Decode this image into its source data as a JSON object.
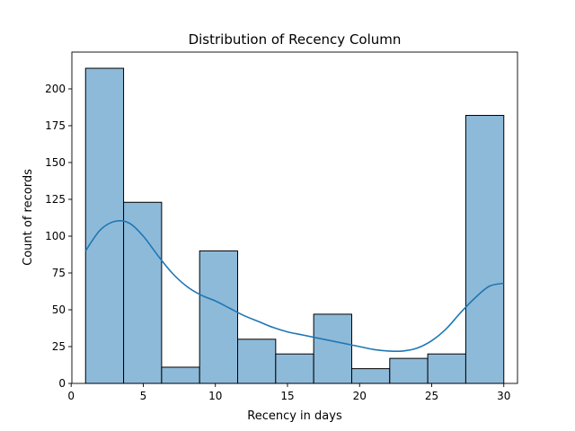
{
  "chart_data": {
    "type": "bar",
    "title": "Distribution of Recency Column",
    "xlabel": "Recency in days",
    "ylabel": "Count of records",
    "xlim": [
      0.05,
      30.95
    ],
    "ylim": [
      0,
      225
    ],
    "xticks": [
      0,
      5,
      10,
      15,
      20,
      25,
      30
    ],
    "yticks": [
      0,
      25,
      50,
      75,
      100,
      125,
      150,
      175,
      200
    ],
    "grid": false,
    "bins": [
      {
        "x0": 1.0,
        "x1": 3.636,
        "value": 214
      },
      {
        "x0": 3.636,
        "x1": 6.273,
        "value": 123
      },
      {
        "x0": 6.273,
        "x1": 8.909,
        "value": 11
      },
      {
        "x0": 8.909,
        "x1": 11.545,
        "value": 90
      },
      {
        "x0": 11.545,
        "x1": 14.182,
        "value": 30
      },
      {
        "x0": 14.182,
        "x1": 16.818,
        "value": 20
      },
      {
        "x0": 16.818,
        "x1": 19.455,
        "value": 47
      },
      {
        "x0": 19.455,
        "x1": 22.091,
        "value": 10
      },
      {
        "x0": 22.091,
        "x1": 24.727,
        "value": 17
      },
      {
        "x0": 24.727,
        "x1": 27.364,
        "value": 20
      },
      {
        "x0": 27.364,
        "x1": 30.0,
        "value": 182
      }
    ],
    "kde": [
      [
        1.0,
        90
      ],
      [
        2.0,
        104
      ],
      [
        3.0,
        110
      ],
      [
        4.0,
        109
      ],
      [
        5.0,
        100
      ],
      [
        6.0,
        87
      ],
      [
        7.0,
        75
      ],
      [
        8.0,
        66
      ],
      [
        9.0,
        60
      ],
      [
        10.0,
        56
      ],
      [
        11.0,
        51
      ],
      [
        12.0,
        46
      ],
      [
        13.0,
        42
      ],
      [
        14.0,
        38
      ],
      [
        15.0,
        35
      ],
      [
        16.0,
        33
      ],
      [
        17.0,
        31
      ],
      [
        18.0,
        29
      ],
      [
        19.0,
        27
      ],
      [
        20.0,
        25
      ],
      [
        21.0,
        23
      ],
      [
        22.0,
        22
      ],
      [
        23.0,
        22
      ],
      [
        24.0,
        24
      ],
      [
        25.0,
        29
      ],
      [
        26.0,
        37
      ],
      [
        27.0,
        48
      ],
      [
        28.0,
        58
      ],
      [
        29.0,
        66
      ],
      [
        30.0,
        68
      ]
    ],
    "colors": {
      "bar_fill": "#8ebad9",
      "bar_edge": "#000000",
      "kde_line": "#1f77b4"
    }
  }
}
